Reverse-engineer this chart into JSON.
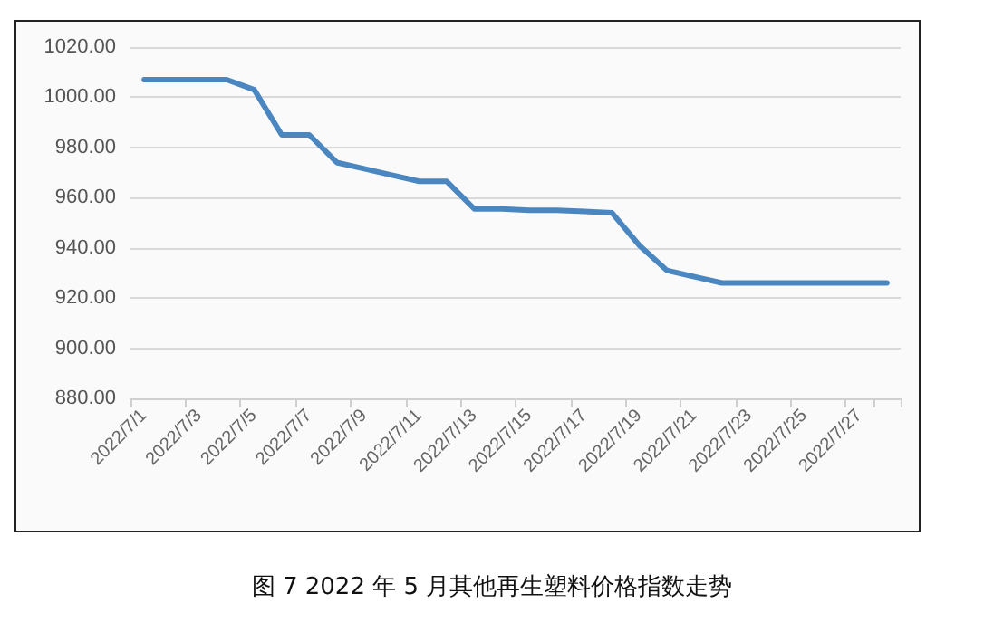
{
  "chart_data": {
    "type": "line",
    "title": "图 7  2022 年 5 月其他再生塑料价格指数走势",
    "categories": [
      "2022/7/1",
      null,
      "2022/7/3",
      null,
      "2022/7/5",
      null,
      "2022/7/7",
      null,
      "2022/7/9",
      null,
      "2022/7/11",
      null,
      "2022/7/13",
      null,
      "2022/7/15",
      null,
      "2022/7/17",
      null,
      "2022/7/19",
      null,
      "2022/7/21",
      null,
      "2022/7/23",
      null,
      "2022/7/25",
      null,
      "2022/7/27",
      null
    ],
    "series": [
      {
        "color": "#4a86c0",
        "values": [
          1007,
          1007,
          1007,
          1007,
          1003,
          985,
          985,
          974,
          971.5,
          969,
          966.5,
          966.5,
          955.5,
          955.5,
          955,
          955,
          954.5,
          954,
          941,
          931,
          928.5,
          926,
          926,
          926,
          926,
          926,
          926,
          926
        ]
      }
    ],
    "ylim": [
      880,
      1020
    ],
    "yticks": [
      {
        "value": 880,
        "label": "880.00"
      },
      {
        "value": 900,
        "label": "900.00"
      },
      {
        "value": 920,
        "label": "920.00"
      },
      {
        "value": 940,
        "label": "940.00"
      },
      {
        "value": 960,
        "label": "960.00"
      },
      {
        "value": 980,
        "label": "980.00"
      },
      {
        "value": 1000,
        "label": "1000.00"
      },
      {
        "value": 1020,
        "label": "1020.00"
      }
    ],
    "grid": "y",
    "marker": "none",
    "line_style": "solid"
  }
}
